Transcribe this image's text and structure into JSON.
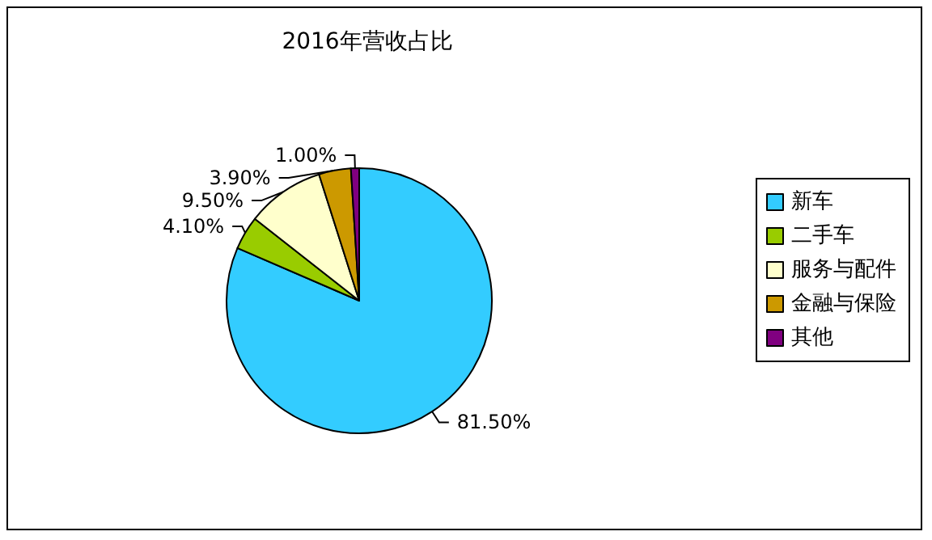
{
  "chart_data": {
    "type": "pie",
    "title": "2016年营收占比",
    "categories": [
      "新车",
      "二手车",
      "服务与配件",
      "金融与保险",
      "其他"
    ],
    "values": [
      81.5,
      4.1,
      9.5,
      3.9,
      1.0
    ],
    "value_labels": [
      "81.50%",
      "4.10%",
      "9.50%",
      "3.90%",
      "1.00%"
    ],
    "colors": [
      "#33ccff",
      "#99cc00",
      "#ffffcc",
      "#cc9900",
      "#800080"
    ],
    "legend": "right"
  }
}
